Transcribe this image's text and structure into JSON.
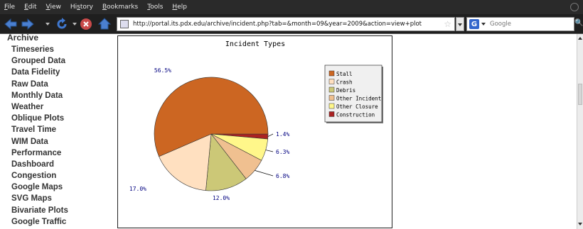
{
  "menu": {
    "items": [
      {
        "u": "F",
        "rest": "ile"
      },
      {
        "u": "E",
        "rest": "dit"
      },
      {
        "u": "V",
        "rest": "iew"
      },
      {
        "pre": "Hi",
        "u": "s",
        "rest": "tory"
      },
      {
        "u": "B",
        "rest": "ookmarks"
      },
      {
        "u": "T",
        "rest": "ools"
      },
      {
        "u": "H",
        "rest": "elp"
      }
    ]
  },
  "address_bar": {
    "url": "http://portal.its.pdx.edu/archive/incident.php?tab=&month=09&year=2009&action=view+plot"
  },
  "search_bar": {
    "engine_letter": "G",
    "placeholder": "Google"
  },
  "sidebar": {
    "title": "Archive",
    "items": [
      "Timeseries",
      "Grouped Data",
      "Data Fidelity",
      "Raw Data",
      "Monthly Data",
      "Weather",
      "Oblique Plots",
      "Travel Time",
      "WIM Data",
      "Performance",
      "Dashboard",
      "Congestion",
      "Google Maps",
      "SVG Maps",
      "Bivariate Plots",
      "Google Traffic"
    ]
  },
  "colors": {
    "menubar_bg": "#2a2a2a",
    "navbar_bg": "#1f1f1f",
    "label_color": "#000080"
  },
  "icons": {
    "back": "back-arrow-icon",
    "forward": "forward-arrow-icon",
    "reload": "reload-icon",
    "stop": "stop-icon",
    "home": "home-icon"
  },
  "chart_data": {
    "type": "pie",
    "title": "Incident Types",
    "legend_placement": "top-right",
    "slices": [
      {
        "name": "Stall",
        "value": 56.5,
        "label": "56.5%",
        "color": "#CC6622"
      },
      {
        "name": "Crash",
        "value": 17.0,
        "label": "17.0%",
        "color": "#FFE0C0"
      },
      {
        "name": "Debris",
        "value": 12.0,
        "label": "12.0%",
        "color": "#CCC877"
      },
      {
        "name": "Other Incident",
        "value": 6.8,
        "label": "6.8%",
        "color": "#F0C090"
      },
      {
        "name": "Other Closure",
        "value": 6.3,
        "label": "6.3%",
        "color": "#FFF78A"
      },
      {
        "name": "Construction",
        "value": 1.4,
        "label": "1.4%",
        "color": "#AA2222"
      }
    ]
  }
}
